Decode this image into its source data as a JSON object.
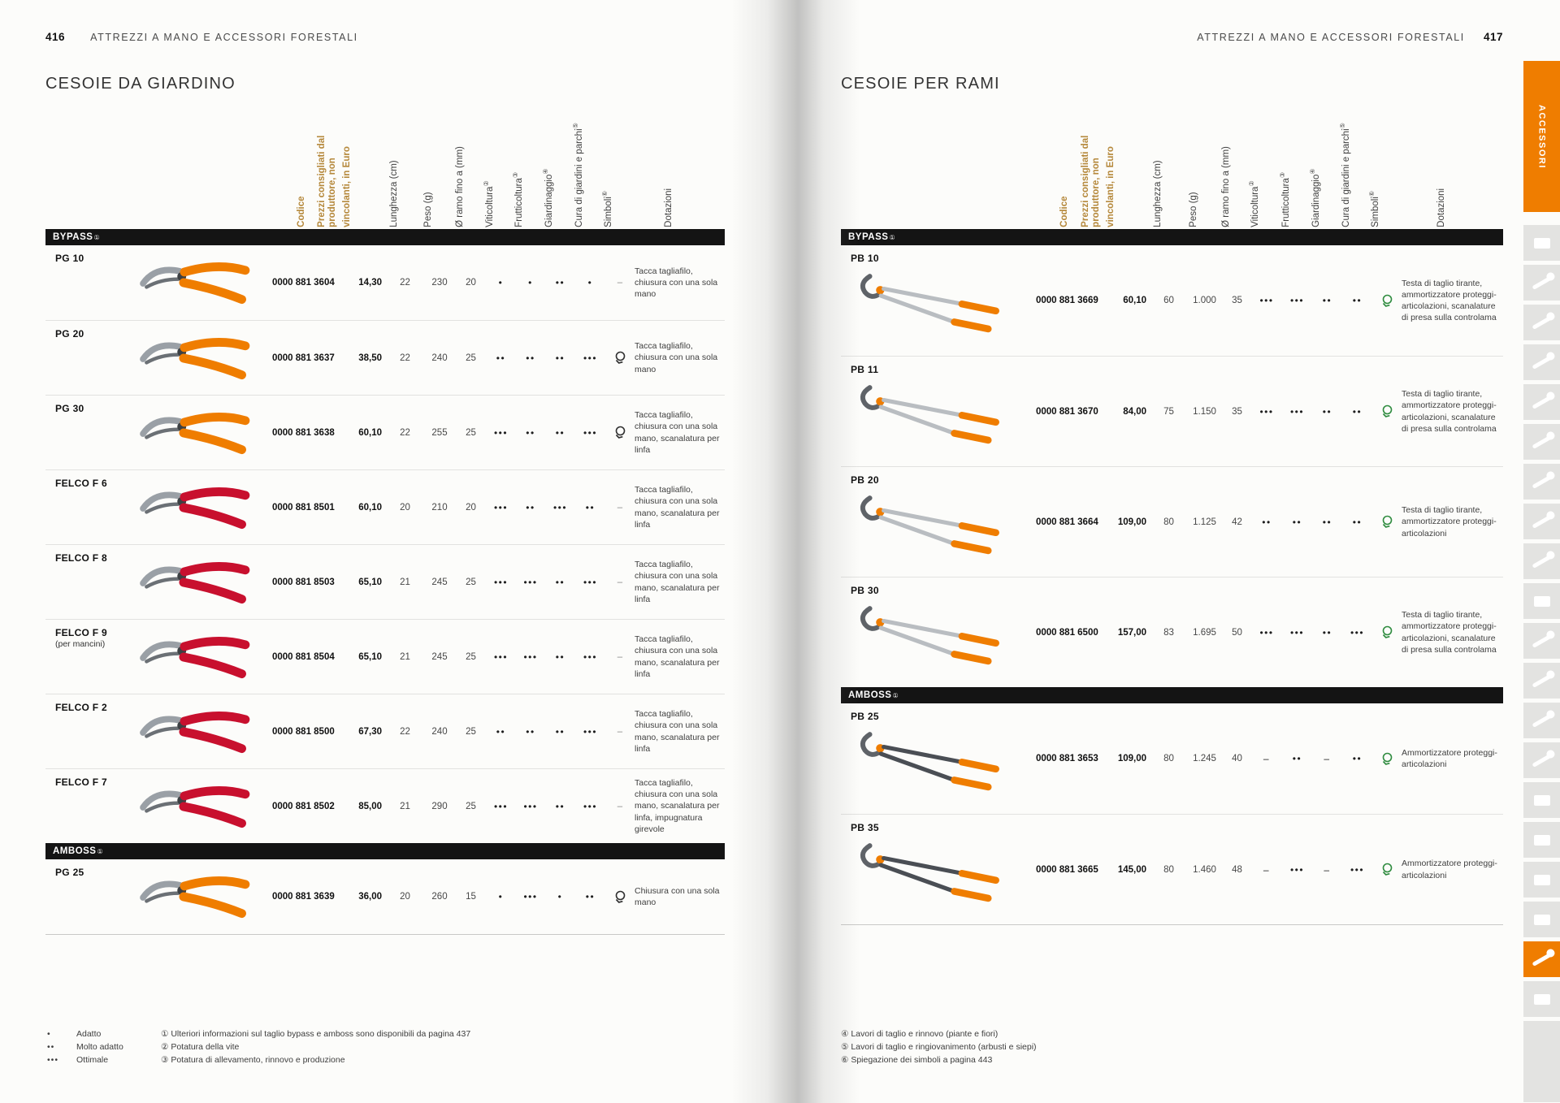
{
  "brand": {
    "orange": "#ef7d00",
    "gold": "#b5883b",
    "felco_red": "#c8102e",
    "symbol_green": "#2e8b3e"
  },
  "columns": [
    {
      "label": "Codice",
      "gold": true
    },
    {
      "label": "Prezzi consigliati dal produttore, non vincolanti, in Euro",
      "gold": true,
      "wide": true
    },
    {
      "label": "Lunghezza (cm)"
    },
    {
      "label": "Peso (g)"
    },
    {
      "label": "Ø ramo fino a (mm)"
    },
    {
      "label": "Viticoltura",
      "sup": "②"
    },
    {
      "label": "Frutticoltura",
      "sup": "③"
    },
    {
      "label": "Giardinaggio",
      "sup": "④"
    },
    {
      "label": "Cura di giardini e parchi",
      "sup": "⑤"
    },
    {
      "label": "Simboli",
      "sup": "⑥"
    },
    {
      "label": "Dotazioni"
    }
  ],
  "left_page": {
    "page_number": "416",
    "breadcrumb": "ATTREZZI A MANO E ACCESSORI FORESTALI",
    "title": "CESOIE DA GIARDINO",
    "symbol_color": "#2f2f2f",
    "sections": [
      {
        "label": "BYPASS",
        "sup": "①",
        "rows": [
          {
            "name": "PG 10",
            "code": "0000 881 3604",
            "price": "14,30",
            "length": "22",
            "weight": "230",
            "diameter": "20",
            "ratings": [
              "•",
              "•",
              "••",
              "•"
            ],
            "symbol": "–",
            "dotazioni": "Tacca tagliafilo, chiusura con una sola mano",
            "image": {
              "kind": "pruner",
              "color": "#ef7d00"
            }
          },
          {
            "name": "PG 20",
            "code": "0000 881 3637",
            "price": "38,50",
            "length": "22",
            "weight": "240",
            "diameter": "25",
            "ratings": [
              "••",
              "••",
              "••",
              "•••"
            ],
            "symbol": "icon",
            "dotazioni": "Tacca tagliafilo, chiusura con una sola mano",
            "image": {
              "kind": "pruner",
              "color": "#ef7d00"
            }
          },
          {
            "name": "PG 30",
            "code": "0000 881 3638",
            "price": "60,10",
            "length": "22",
            "weight": "255",
            "diameter": "25",
            "ratings": [
              "•••",
              "••",
              "••",
              "•••"
            ],
            "symbol": "icon",
            "dotazioni": "Tacca tagliafilo, chiusura con una sola mano, scanalatura per linfa",
            "image": {
              "kind": "pruner",
              "color": "#ef7d00"
            }
          },
          {
            "name": "FELCO F 6",
            "code": "0000 881 8501",
            "price": "60,10",
            "length": "20",
            "weight": "210",
            "diameter": "20",
            "ratings": [
              "•••",
              "••",
              "•••",
              "••"
            ],
            "symbol": "–",
            "dotazioni": "Tacca tagliafilo, chiusura con una sola mano, scanalatura per linfa",
            "image": {
              "kind": "pruner",
              "color": "#c8102e"
            }
          },
          {
            "name": "FELCO F 8",
            "code": "0000 881 8503",
            "price": "65,10",
            "length": "21",
            "weight": "245",
            "diameter": "25",
            "ratings": [
              "•••",
              "•••",
              "••",
              "•••"
            ],
            "symbol": "–",
            "dotazioni": "Tacca tagliafilo, chiusura con una sola mano, scanalatura per linfa",
            "image": {
              "kind": "pruner",
              "color": "#c8102e"
            }
          },
          {
            "name": "FELCO F 9",
            "sub": "(per mancini)",
            "code": "0000 881 8504",
            "price": "65,10",
            "length": "21",
            "weight": "245",
            "diameter": "25",
            "ratings": [
              "•••",
              "•••",
              "••",
              "•••"
            ],
            "symbol": "–",
            "dotazioni": "Tacca tagliafilo, chiusura con una sola mano, scanalatura per linfa",
            "image": {
              "kind": "pruner",
              "color": "#c8102e"
            }
          },
          {
            "name": "FELCO F 2",
            "code": "0000 881 8500",
            "price": "67,30",
            "length": "22",
            "weight": "240",
            "diameter": "25",
            "ratings": [
              "••",
              "••",
              "••",
              "•••"
            ],
            "symbol": "–",
            "dotazioni": "Tacca tagliafilo, chiusura con una sola mano, scanalatura per linfa",
            "image": {
              "kind": "pruner",
              "color": "#c8102e"
            }
          },
          {
            "name": "FELCO F 7",
            "code": "0000 881 8502",
            "price": "85,00",
            "length": "21",
            "weight": "290",
            "diameter": "25",
            "ratings": [
              "•••",
              "•••",
              "••",
              "•••"
            ],
            "symbol": "–",
            "dotazioni": "Tacca tagliafilo, chiusura con una sola mano, scanalatura per linfa, impugnatura girevole",
            "image": {
              "kind": "pruner",
              "color": "#c8102e"
            }
          }
        ]
      },
      {
        "label": "AMBOSS",
        "sup": "①",
        "rows": [
          {
            "name": "PG 25",
            "code": "0000 881 3639",
            "price": "36,00",
            "length": "20",
            "weight": "260",
            "diameter": "15",
            "ratings": [
              "•",
              "•••",
              "•",
              "••"
            ],
            "symbol": "icon",
            "dotazioni": "Chiusura con una sola mano",
            "image": {
              "kind": "pruner",
              "color": "#ef7d00"
            }
          }
        ]
      }
    ],
    "legend": {
      "ratings": [
        {
          "mark": "•",
          "label": "Adatto"
        },
        {
          "mark": "••",
          "label": "Molto adatto"
        },
        {
          "mark": "•••",
          "label": "Ottimale"
        }
      ],
      "notes": [
        "① Ulteriori informazioni sul taglio bypass e amboss sono disponibili da pagina 437",
        "② Potatura della vite",
        "③ Potatura di allevamento, rinnovo e produzione"
      ]
    }
  },
  "right_page": {
    "page_number": "417",
    "breadcrumb": "ATTREZZI A MANO E ACCESSORI FORESTALI",
    "title": "CESOIE PER RAMI",
    "symbol_color": "#2e8b3e",
    "sections": [
      {
        "label": "BYPASS",
        "sup": "①",
        "rows": [
          {
            "name": "PB 10",
            "code": "0000 881 3669",
            "price": "60,10",
            "length": "60",
            "weight": "1.000",
            "diameter": "35",
            "ratings": [
              "•••",
              "•••",
              "••",
              "••"
            ],
            "symbol": "icon",
            "dotazioni": "Testa di taglio tirante, ammortizzatore proteggi-articolazioni, scanalature di presa sulla controlama",
            "image": {
              "kind": "lopper",
              "color": "#b9bdc1"
            }
          },
          {
            "name": "PB 11",
            "code": "0000 881 3670",
            "price": "84,00",
            "length": "75",
            "weight": "1.150",
            "diameter": "35",
            "ratings": [
              "•••",
              "•••",
              "••",
              "••"
            ],
            "symbol": "icon",
            "dotazioni": "Testa di taglio tirante, ammortizzatore proteggi-articolazioni, scanalature di presa sulla controlama",
            "image": {
              "kind": "lopper",
              "color": "#b9bdc1"
            }
          },
          {
            "name": "PB 20",
            "code": "0000 881 3664",
            "price": "109,00",
            "length": "80",
            "weight": "1.125",
            "diameter": "42",
            "ratings": [
              "••",
              "••",
              "••",
              "••"
            ],
            "symbol": "icon",
            "dotazioni": "Testa di taglio tirante, ammortizzatore proteggi-articolazioni",
            "image": {
              "kind": "lopper",
              "color": "#b9bdc1"
            }
          },
          {
            "name": "PB 30",
            "code": "0000 881 6500",
            "price": "157,00",
            "length": "83",
            "weight": "1.695",
            "diameter": "50",
            "ratings": [
              "•••",
              "•••",
              "••",
              "•••"
            ],
            "symbol": "icon",
            "dotazioni": "Testa di taglio tirante, ammortizzatore proteggi-articolazioni, scanalature di presa sulla controlama",
            "image": {
              "kind": "lopper",
              "color": "#b9bdc1"
            }
          }
        ]
      },
      {
        "label": "AMBOSS",
        "sup": "①",
        "rows": [
          {
            "name": "PB 25",
            "code": "0000 881 3653",
            "price": "109,00",
            "length": "80",
            "weight": "1.245",
            "diameter": "40",
            "ratings": [
              "–",
              "••",
              "–",
              "••"
            ],
            "symbol": "icon",
            "dotazioni": "Ammortizzatore proteggi-articolazioni",
            "image": {
              "kind": "lopper",
              "color": "#4a4e54"
            }
          },
          {
            "name": "PB 35",
            "code": "0000 881 3665",
            "price": "145,00",
            "length": "80",
            "weight": "1.460",
            "diameter": "48",
            "ratings": [
              "–",
              "•••",
              "–",
              "•••"
            ],
            "symbol": "icon",
            "dotazioni": "Ammortizzatore proteggi-articolazioni",
            "image": {
              "kind": "lopper",
              "color": "#4a4e54"
            }
          }
        ]
      }
    ],
    "legend": {
      "notes": [
        "④ Lavori di taglio e rinnovo (piante e fiori)",
        "⑤ Lavori di taglio e ringiovanimento (arbusti e siepi)",
        "⑥ Spiegazione dei simboli a pagina 443"
      ]
    }
  },
  "sidebar": {
    "tab_label": "ACCESSORI",
    "tiles": [
      {
        "icon": "battery-icon"
      },
      {
        "icon": "chainsaw-icon"
      },
      {
        "icon": "pole-pruner-icon"
      },
      {
        "icon": "hand-pruner-icon"
      },
      {
        "icon": "harvester-icon"
      },
      {
        "icon": "trowel-icon"
      },
      {
        "icon": "brushcutter-icon"
      },
      {
        "icon": "grass-shears-icon"
      },
      {
        "icon": "mallet-icon"
      },
      {
        "icon": "helmet-icon"
      },
      {
        "icon": "watering-can-icon"
      },
      {
        "icon": "extension-pole-icon"
      },
      {
        "icon": "blower-nozzle-icon"
      },
      {
        "icon": "boot-icon"
      },
      {
        "icon": "tablet-icon"
      },
      {
        "icon": "document-icon"
      },
      {
        "icon": "jacket-icon"
      },
      {
        "icon": "toolbox-icon"
      },
      {
        "icon": "axe-icon",
        "active": true
      },
      {
        "icon": "sprayer-icon"
      }
    ]
  }
}
